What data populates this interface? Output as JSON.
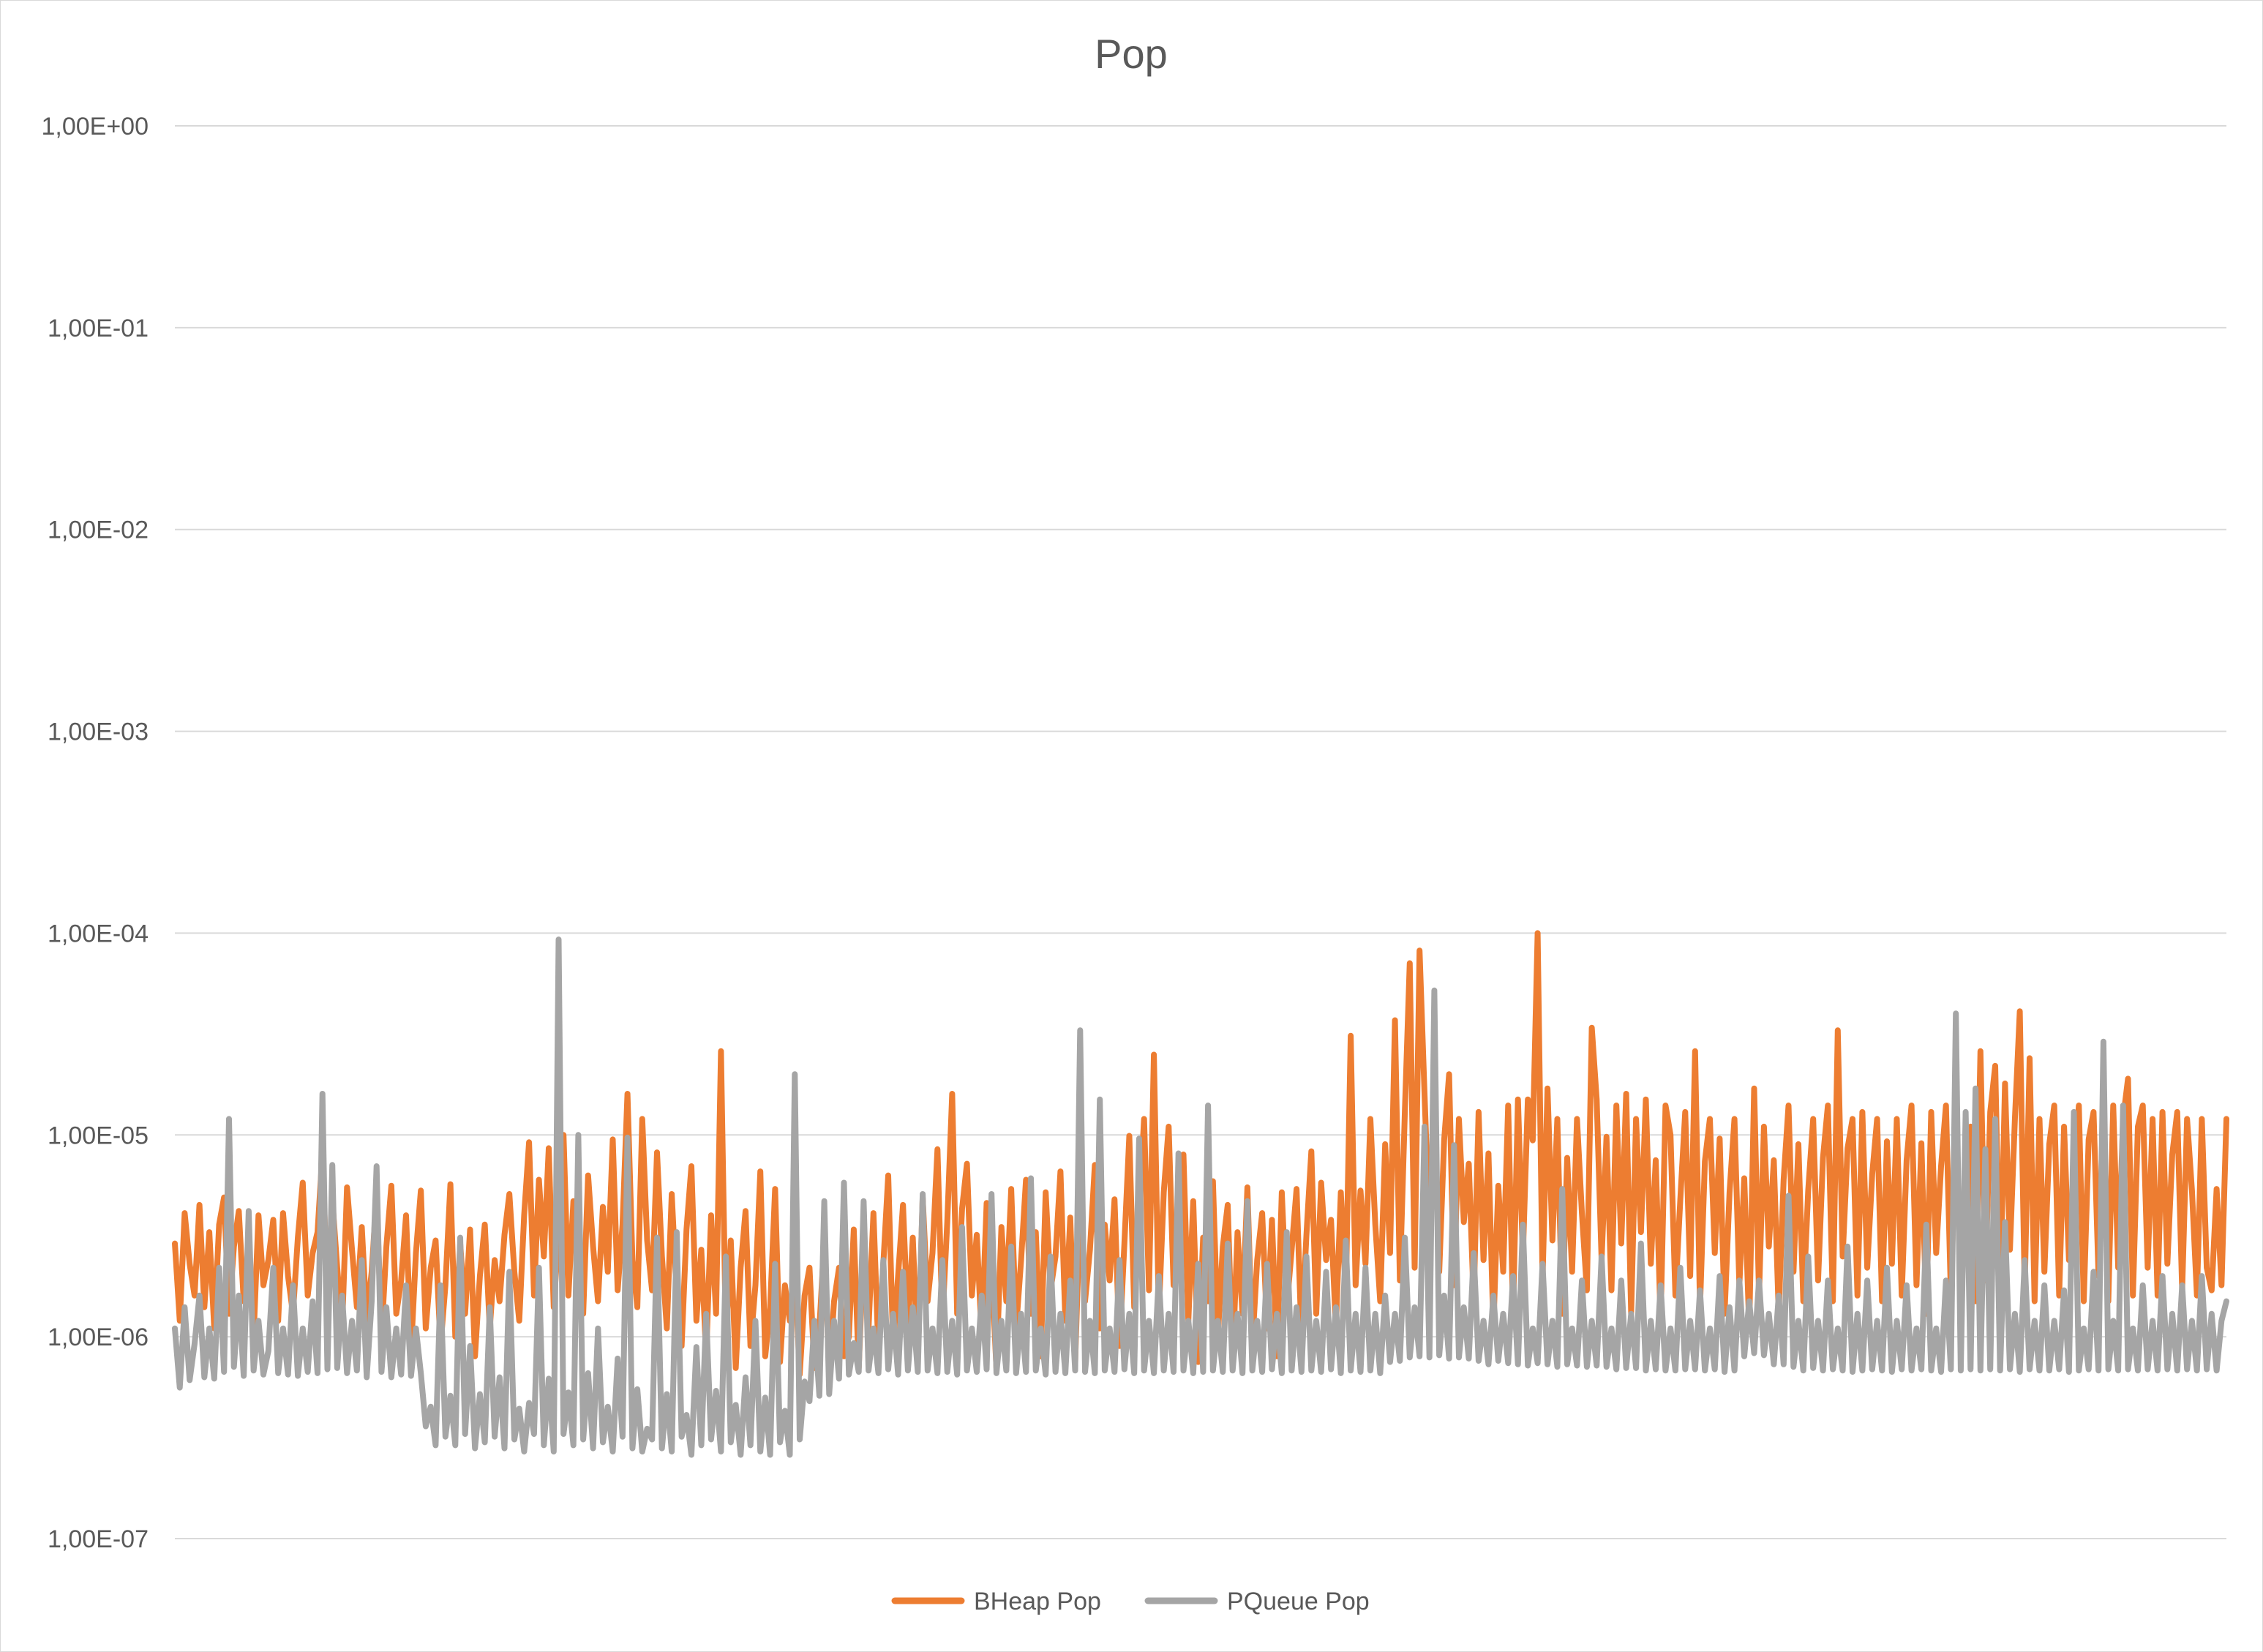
{
  "chart_data": {
    "type": "line",
    "title": "Pop",
    "xlabel": "",
    "ylabel": "",
    "yscale": "log",
    "ylim": [
      1e-07,
      1
    ],
    "y_ticks": [
      {
        "value": 1,
        "label": "1,00E+00"
      },
      {
        "value": 0.1,
        "label": "1,00E-01"
      },
      {
        "value": 0.01,
        "label": "1,00E-02"
      },
      {
        "value": 0.001,
        "label": "1,00E-03"
      },
      {
        "value": 0.0001,
        "label": "1,00E-04"
      },
      {
        "value": 1e-05,
        "label": "1,00E-05"
      },
      {
        "value": 1e-06,
        "label": "1,00E-06"
      },
      {
        "value": 1e-07,
        "label": "1,00E-07"
      }
    ],
    "grid": true,
    "legend_position": "bottom",
    "series": [
      {
        "name": "BHeap Pop",
        "color": "#ed7d31",
        "values": [
          2.9e-06,
          1.2e-06,
          4.1e-06,
          2.3e-06,
          1.6e-06,
          4.5e-06,
          1.4e-06,
          3.3e-06,
          1.1e-06,
          3.6e-06,
          4.9e-06,
          1.3e-06,
          2.8e-06,
          4.2e-06,
          1.5e-06,
          2.5e-06,
          1e-06,
          4e-06,
          1.8e-06,
          2.4e-06,
          3.8e-06,
          1.2e-06,
          4.1e-06,
          2e-06,
          1.3e-06,
          3.1e-06,
          5.8e-06,
          1.6e-06,
          2.6e-06,
          3.3e-06,
          8.1e-06,
          1.5e-06,
          4.8e-06,
          2.2e-06,
          1.1e-06,
          5.5e-06,
          2.7e-06,
          1.4e-06,
          3.5e-06,
          1.2e-06,
          2.1e-06,
          5e-06,
          1e-06,
          2.8e-06,
          5.6e-06,
          1.3e-06,
          1.9e-06,
          4e-06,
          8.5e-07,
          2.6e-06,
          5.3e-06,
          1.1e-06,
          2.2e-06,
          3e-06,
          9e-07,
          1.8e-06,
          5.7e-06,
          1e-06,
          2.9e-06,
          1.3e-06,
          3.4e-06,
          8e-07,
          2e-06,
          3.6e-06,
          1.1e-06,
          2.4e-06,
          1.5e-06,
          3.2e-06,
          5.1e-06,
          2.1e-06,
          1.2e-06,
          4e-06,
          9.2e-06,
          1.6e-06,
          6e-06,
          2.5e-06,
          8.6e-06,
          1.4e-06,
          3.3e-06,
          1e-05,
          1.6e-06,
          4.7e-06,
          2.2e-06,
          1.3e-06,
          6.3e-06,
          2.8e-06,
          1.5e-06,
          4.4e-06,
          2.1e-06,
          9.5e-06,
          1.7e-06,
          3.6e-06,
          1.6e-05,
          2.4e-06,
          1.4e-06,
          1.2e-05,
          3e-06,
          1.7e-06,
          8.2e-06,
          2.5e-06,
          1.1e-06,
          5.1e-06,
          1.6e-06,
          9e-07,
          3.4e-06,
          7e-06,
          1.2e-06,
          2.7e-06,
          8e-07,
          4e-06,
          1.3e-06,
          2.6e-05,
          1e-06,
          3e-06,
          7e-07,
          2.2e-06,
          4.2e-06,
          9e-07,
          1.8e-06,
          6.6e-06,
          8e-07,
          1.4e-06,
          5.4e-06,
          7.5e-07,
          1.8e-06,
          1.2e-06,
          2.3e-06,
          6.5e-07,
          1.6e-06,
          2.2e-06,
          7e-07,
          1.1e-06,
          3e-06,
          6.5e-07,
          1.5e-06,
          2.2e-06,
          8e-07,
          1e-06,
          3.4e-06,
          7e-07,
          2.8e-06,
          1.1e-06,
          4.1e-06,
          8.5e-07,
          2.3e-06,
          6.3e-06,
          9e-07,
          2e-06,
          4.5e-06,
          1.1e-06,
          3.1e-06,
          7.5e-07,
          4.9e-06,
          1.5e-06,
          2.6e-06,
          8.5e-06,
          1.2e-06,
          3.7e-06,
          1.6e-05,
          1.3e-06,
          4.3e-06,
          7.2e-06,
          1.6e-06,
          3.2e-06,
          1e-06,
          4.6e-06,
          2.2e-06,
          7e-07,
          3.5e-06,
          1.5e-06,
          5.4e-06,
          1.1e-06,
          2.4e-06,
          6e-06,
          1.3e-06,
          3.3e-06,
          8e-07,
          5.2e-06,
          1.7e-06,
          2.5e-06,
          6.6e-06,
          1.2e-06,
          3.9e-06,
          7.5e-07,
          4.4e-06,
          1.5e-06,
          2.7e-06,
          7.1e-06,
          1.1e-06,
          3.6e-06,
          1.9e-06,
          4.8e-06,
          9e-07,
          2.9e-06,
          9.9e-06,
          1.4e-06,
          4.2e-06,
          1.2e-05,
          1.7e-06,
          2.5e-05,
          1.3e-06,
          5.2e-06,
          1.1e-05,
          1.8e-06,
          3.4e-06,
          8e-06,
          1.2e-06,
          4.7e-06,
          7.5e-07,
          3.1e-06,
          1.5e-06,
          5.9e-06,
          1e-06,
          2.8e-06,
          4.5e-06,
          7.5e-07,
          3.3e-06,
          1.3e-06,
          5.5e-06,
          9e-07,
          2.4e-06,
          4.1e-06,
          1.1e-06,
          3.8e-06,
          8e-07,
          5.2e-06,
          1.4e-06,
          2.7e-06,
          5.4e-06,
          1e-06,
          3.2e-06,
          8.3e-06,
          1.3e-06,
          5.8e-06,
          2.4e-06,
          3.8e-06,
          1.1e-06,
          5.2e-06,
          1.6e-06,
          3.1e-05,
          1.8e-06,
          5.3e-06,
          2.3e-06,
          1.2e-05,
          3.6e-06,
          1.5e-06,
          9e-06,
          2.6e-06,
          3.7e-05,
          1.9e-06,
          1.3e-05,
          7.1e-05,
          2.2e-06,
          8.2e-05,
          1.6e-05,
          3.3e-06,
          1.5e-05,
          2.1e-06,
          9.4e-06,
          2e-05,
          1.8e-06,
          1.2e-05,
          3.7e-06,
          7.2e-06,
          1.5e-06,
          1.3e-05,
          2.4e-06,
          8.1e-06,
          1.1e-06,
          5.6e-06,
          2.1e-06,
          1.4e-05,
          1.3e-06,
          1.5e-05,
          2.5e-06,
          1.5e-05,
          9.4e-06,
          0.0001,
          1.9e-06,
          1.7e-05,
          3e-06,
          1.2e-05,
          1.3e-06,
          7.7e-06,
          2.1e-06,
          1.2e-05,
          4.1e-06,
          1.7e-06,
          3.4e-05,
          1.5e-05,
          2.4e-06,
          9.8e-06,
          1.7e-06,
          1.4e-05,
          2.9e-06,
          1.6e-05,
          1.3e-06,
          1.2e-05,
          3.3e-06,
          1.5e-05,
          2.3e-06,
          7.5e-06,
          1.2e-06,
          1.4e-05,
          1e-05,
          1.6e-06,
          4.8e-06,
          1.3e-05,
          2e-06,
          2.6e-05,
          1.4e-06,
          7.4e-06,
          1.2e-05,
          2.6e-06,
          9.6e-06,
          1.3e-06,
          5.2e-06,
          1.2e-05,
          1.8e-06,
          6.1e-06,
          1.1e-06,
          1.7e-05,
          1.6e-06,
          1.1e-05,
          2.8e-06,
          7.5e-06,
          1.3e-06,
          6e-06,
          1.4e-05,
          2.1e-06,
          9e-06,
          1.5e-06,
          5.3e-06,
          1.2e-05,
          1.9e-06,
          7.7e-06,
          1.4e-05,
          1.5e-06,
          3.3e-05,
          2.5e-06,
          8.6e-06,
          1.2e-05,
          1.6e-06,
          1.3e-05,
          2.2e-06,
          6.4e-06,
          1.2e-05,
          1.5e-06,
          9.3e-06,
          2.3e-06,
          1.2e-05,
          1.6e-06,
          7.5e-06,
          1.4e-05,
          1.8e-06,
          9.1e-06,
          1.3e-06,
          1.3e-05,
          2.6e-06,
          7e-06,
          1.4e-05,
          1.6e-06,
          1.1e-05,
          2.3e-06,
          5.6e-06,
          1.1e-05,
          1.5e-06,
          2.6e-05,
          1.9e-06,
          1.3e-05,
          2.2e-05,
          1.6e-06,
          1.8e-05,
          2.7e-06,
          1.2e-05,
          4.1e-05,
          1.7e-06,
          2.4e-05,
          1.5e-06,
          1.2e-05,
          2.1e-06,
          9e-06,
          1.4e-05,
          1.6e-06,
          1.1e-05,
          2.4e-06,
          6.2e-06,
          1.4e-05,
          1.5e-06,
          9.5e-06,
          1.3e-05,
          2e-06,
          1.6e-05,
          1.5e-06,
          1.4e-05,
          2.2e-06,
          1.2e-05,
          1.9e-05,
          1.6e-06,
          1.1e-05,
          1.4e-05,
          2.2e-06,
          1.2e-05,
          1.6e-06,
          1.3e-05,
          2.3e-06,
          8e-06,
          1.3e-05,
          1.7e-06,
          1.2e-05,
          5.3e-06,
          1.6e-06,
          1.2e-05,
          2.2e-06,
          1.7e-06,
          5.4e-06,
          1.8e-06,
          1.2e-05
        ]
      },
      {
        "name": "PQueue Pop",
        "color": "#a5a5a5",
        "values": [
          1.1e-06,
          5.6e-07,
          1.4e-06,
          6.1e-07,
          9.2e-07,
          1.6e-06,
          6.3e-07,
          1.1e-06,
          6.2e-07,
          2.2e-06,
          6.7e-07,
          1.2e-05,
          7.1e-07,
          1.6e-06,
          6.4e-07,
          4.2e-06,
          6.8e-07,
          1.2e-06,
          6.5e-07,
          8.5e-07,
          2.2e-06,
          6.6e-07,
          1.1e-06,
          6.5e-07,
          1.8e-06,
          6.4e-07,
          1.1e-06,
          6.7e-07,
          1.5e-06,
          6.6e-07,
          1.6e-05,
          6.9e-07,
          7.1e-06,
          7e-07,
          1.6e-06,
          6.6e-07,
          1.2e-06,
          6.8e-07,
          2.4e-06,
          6.3e-07,
          1.5e-06,
          7e-06,
          6.7e-07,
          1.4e-06,
          6.3e-07,
          1.1e-06,
          6.5e-07,
          1.8e-06,
          6.4e-07,
          1.1e-06,
          6.6e-07,
          3.6e-07,
          4.5e-07,
          2.9e-07,
          1.8e-06,
          3.2e-07,
          5.1e-07,
          2.9e-07,
          3.1e-06,
          3.3e-07,
          9e-07,
          2.8e-07,
          5.2e-07,
          3e-07,
          1.4e-06,
          3.2e-07,
          6.3e-07,
          2.8e-07,
          2.1e-06,
          3.1e-07,
          4.4e-07,
          2.7e-07,
          4.7e-07,
          3.3e-07,
          2.2e-06,
          2.9e-07,
          6.2e-07,
          2.7e-07,
          9.3e-05,
          3.3e-07,
          5.3e-07,
          2.9e-07,
          1e-05,
          3.1e-07,
          6.6e-07,
          2.8e-07,
          1.1e-06,
          3e-07,
          4.5e-07,
          2.7e-07,
          7.8e-07,
          3.2e-07,
          9.7e-06,
          2.8e-07,
          5.5e-07,
          2.7e-07,
          3.5e-07,
          3.1e-07,
          3.1e-06,
          2.8e-07,
          5.2e-07,
          2.7e-07,
          3.3e-06,
          3.2e-07,
          4.1e-07,
          2.6e-07,
          8.9e-07,
          2.9e-07,
          1.3e-06,
          3.1e-07,
          5.4e-07,
          2.7e-07,
          2.5e-06,
          3e-07,
          4.6e-07,
          2.6e-07,
          6.3e-07,
          2.9e-07,
          1.2e-06,
          2.7e-07,
          5e-07,
          2.6e-07,
          2.3e-06,
          3e-07,
          4.3e-07,
          2.6e-07,
          2e-05,
          3.1e-07,
          6e-07,
          4.8e-07,
          1.2e-06,
          5.1e-07,
          4.7e-06,
          5.2e-07,
          1.2e-06,
          6.2e-07,
          5.8e-06,
          6.5e-07,
          9.3e-07,
          6.7e-07,
          4.7e-06,
          6.8e-07,
          1.1e-06,
          6.6e-07,
          2.4e-06,
          6.9e-07,
          1.3e-06,
          6.5e-07,
          2.1e-06,
          6.8e-07,
          1.4e-06,
          6.7e-07,
          5.1e-06,
          6.8e-07,
          1.1e-06,
          6.6e-07,
          2.4e-06,
          6.7e-07,
          1.2e-06,
          6.5e-07,
          3.5e-06,
          6.8e-07,
          1.1e-06,
          6.7e-07,
          1.6e-06,
          6.9e-07,
          5.1e-06,
          6.6e-07,
          1.2e-06,
          6.8e-07,
          2.8e-06,
          6.6e-07,
          1.3e-06,
          6.7e-07,
          6.1e-06,
          6.8e-07,
          1.1e-06,
          6.5e-07,
          2.5e-06,
          6.7e-07,
          1.3e-06,
          6.6e-07,
          1.9e-06,
          6.8e-07,
          3.3e-05,
          6.7e-07,
          1.2e-06,
          6.6e-07,
          1.5e-05,
          6.8e-07,
          1.1e-06,
          6.7e-07,
          2.4e-06,
          6.9e-07,
          1.3e-06,
          6.6e-07,
          9.6e-06,
          6.8e-07,
          1.2e-06,
          6.6e-07,
          2e-06,
          6.8e-07,
          1.3e-06,
          6.7e-07,
          8.1e-06,
          6.8e-07,
          1.2e-06,
          6.6e-07,
          2.3e-06,
          6.7e-07,
          1.4e-05,
          6.8e-07,
          1.2e-06,
          6.7e-07,
          2.9e-06,
          6.8e-07,
          1.3e-06,
          6.6e-07,
          4.7e-06,
          6.8e-07,
          1.2e-06,
          6.7e-07,
          2.3e-06,
          6.9e-07,
          1.3e-06,
          6.6e-07,
          3.3e-06,
          6.8e-07,
          1.4e-06,
          6.7e-07,
          2.5e-06,
          6.8e-07,
          1.2e-06,
          6.7e-07,
          2.1e-06,
          6.9e-07,
          1.4e-06,
          6.6e-07,
          3e-06,
          6.8e-07,
          1.3e-06,
          6.7e-07,
          2.2e-06,
          6.8e-07,
          1.3e-06,
          6.6e-07,
          1.6e-06,
          7.5e-07,
          1.3e-06,
          7.6e-07,
          3.1e-06,
          7.9e-07,
          1.4e-06,
          8e-07,
          1.1e-05,
          7.9e-07,
          5.2e-05,
          8.1e-07,
          1.6e-06,
          7.8e-07,
          8.9e-06,
          7.9e-07,
          1.4e-06,
          7.8e-07,
          2.6e-06,
          7.6e-07,
          1.2e-06,
          7.3e-07,
          1.6e-06,
          7.6e-07,
          1.3e-06,
          7.4e-07,
          2e-06,
          7.3e-07,
          3.6e-06,
          7.2e-07,
          1.1e-06,
          7.4e-07,
          2.3e-06,
          7.3e-07,
          1.2e-06,
          7.1e-07,
          5.4e-06,
          7.3e-07,
          1.1e-06,
          7.2e-07,
          1.9e-06,
          7.1e-07,
          1.2e-06,
          7.2e-07,
          2.5e-06,
          7.1e-07,
          1.1e-06,
          6.9e-07,
          1.9e-06,
          7e-07,
          1.3e-06,
          7e-07,
          2.9e-06,
          6.8e-07,
          1.2e-06,
          6.9e-07,
          1.8e-06,
          6.8e-07,
          1.1e-06,
          6.8e-07,
          2.2e-06,
          6.9e-07,
          1.2e-06,
          6.9e-07,
          1.7e-06,
          6.8e-07,
          1.1e-06,
          6.9e-07,
          2e-06,
          6.7e-07,
          1.4e-06,
          6.8e-07,
          1.9e-06,
          8e-07,
          1.5e-06,
          8.3e-07,
          1.9e-06,
          8.1e-07,
          1.3e-06,
          7.3e-07,
          1.6e-06,
          7.3e-07,
          5e-06,
          7.1e-07,
          1.2e-06,
          6.8e-07,
          2.5e-06,
          7e-07,
          1.2e-06,
          6.8e-07,
          1.9e-06,
          6.9e-07,
          1.1e-06,
          6.8e-07,
          2.8e-06,
          6.7e-07,
          1.3e-06,
          6.8e-07,
          1.9e-06,
          6.9e-07,
          1.2e-06,
          6.8e-07,
          2.2e-06,
          6.7e-07,
          1.2e-06,
          6.9e-07,
          1.8e-06,
          6.8e-07,
          1.1e-06,
          6.9e-07,
          3.6e-06,
          6.8e-07,
          1.1e-06,
          6.7e-07,
          1.9e-06,
          6.9e-07,
          4e-05,
          6.8e-07,
          1.3e-05,
          6.9e-07,
          1.7e-05,
          6.8e-07,
          8.5e-06,
          6.9e-07,
          1.2e-05,
          6.8e-07,
          3.7e-06,
          6.9e-07,
          1.3e-06,
          6.7e-07,
          2.4e-06,
          6.9e-07,
          1.2e-06,
          6.8e-07,
          1.8e-06,
          6.8e-07,
          1.2e-06,
          6.9e-07,
          1.7e-06,
          6.7e-07,
          1.3e-05,
          6.8e-07,
          1.1e-06,
          6.9e-07,
          2.1e-06,
          6.8e-07,
          2.9e-05,
          6.9e-07,
          1.2e-06,
          6.8e-07,
          1.4e-05,
          6.9e-07,
          1.1e-06,
          6.8e-07,
          1.8e-06,
          6.9e-07,
          1.2e-06,
          6.8e-07,
          2e-06,
          6.9e-07,
          1.3e-06,
          6.8e-07,
          1.8e-06,
          6.9e-07,
          1.2e-06,
          6.8e-07,
          2e-06,
          6.9e-07,
          1.3e-06,
          6.8e-07,
          1.2e-06,
          1.5e-06
        ]
      }
    ]
  }
}
